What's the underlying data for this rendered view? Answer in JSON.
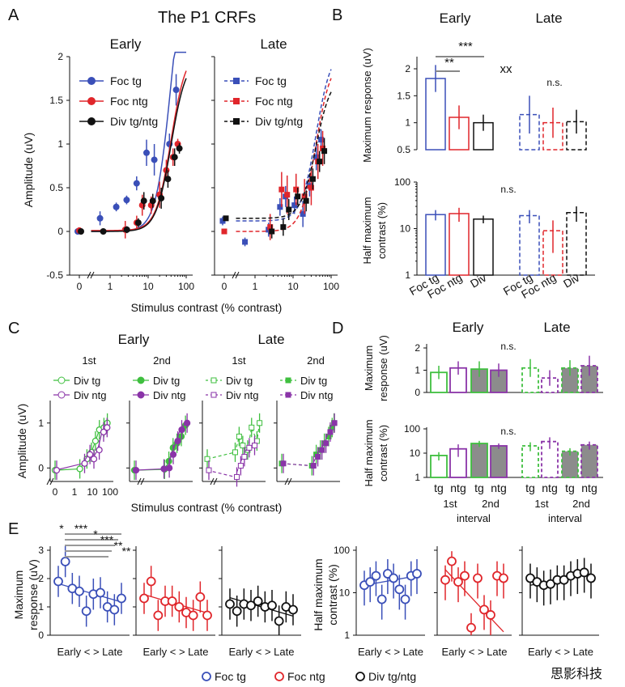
{
  "colors": {
    "blue": "#3a4fb8",
    "red": "#e0262b",
    "black": "#111111",
    "green": "#3fbf3f",
    "purple": "#8a34a8",
    "gray": "#8c8c8c"
  },
  "figure": {
    "title": "The P1 CRFs",
    "watermark": "思影科技"
  },
  "panel_labels": {
    "a": "A",
    "b": "B",
    "c": "C",
    "d": "D",
    "e": "E"
  },
  "chart_data": [
    {
      "id": "A-early",
      "type": "line",
      "title": "Early",
      "xlabel": "Stimulus contrast (% contrast)",
      "ylabel": "Amplitude (uV)",
      "x_ticks": [
        "0",
        "1",
        "10",
        "100"
      ],
      "y_ticks": [
        "-0.5",
        "0",
        "0.5",
        "1",
        "1.5",
        "2"
      ],
      "ylim": [
        -0.5,
        2
      ],
      "series": [
        {
          "name": "Foc tg",
          "color": "blue",
          "x": [
            0,
            0.6,
            1.6,
            3,
            5.5,
            10,
            16,
            40,
            60
          ],
          "y": [
            0,
            0.15,
            0.28,
            0.36,
            0.55,
            0.9,
            0.82,
            1.0,
            1.62
          ],
          "err": [
            0.03,
            0.08,
            0.05,
            0.05,
            0.08,
            0.15,
            0.18,
            0.12,
            0.18
          ]
        },
        {
          "name": "Foc ntg",
          "color": "red",
          "x": [
            0,
            2.5,
            5,
            7,
            12,
            20,
            30,
            45,
            60
          ],
          "y": [
            0.01,
            0.02,
            0.1,
            0.3,
            0.3,
            0.42,
            0.7,
            0.85,
            1.0
          ],
          "err": [
            0.02,
            0.1,
            0.08,
            0.12,
            0.1,
            0.15,
            0.12,
            0.1,
            0.06
          ]
        },
        {
          "name": "Div tg/ntg",
          "color": "black",
          "x": [
            0,
            0.6,
            2.5,
            5,
            7,
            12,
            20,
            30,
            45,
            60
          ],
          "y": [
            0,
            0.0,
            0.02,
            0.1,
            0.35,
            0.35,
            0.38,
            0.6,
            0.85,
            0.95
          ],
          "err": [
            0.02,
            0.02,
            0.04,
            0.05,
            0.1,
            0.08,
            0.12,
            0.1,
            0.1,
            0.06
          ]
        }
      ]
    },
    {
      "id": "A-late",
      "type": "line",
      "title": "Late",
      "x_ticks": [
        "0",
        "1",
        "10",
        "100"
      ],
      "ylim": [
        -0.5,
        2
      ],
      "series": [
        {
          "name": "Foc tg",
          "color": "blue",
          "x": [
            0,
            0.6,
            2.5,
            5,
            7,
            12,
            20,
            30,
            45,
            60
          ],
          "y": [
            0.12,
            -0.12,
            0.02,
            0.28,
            0.4,
            0.3,
            0.2,
            0.52,
            0.85,
            1.05
          ],
          "err": [
            0.05,
            0.05,
            0.08,
            0.1,
            0.12,
            0.1,
            0.15,
            0.12,
            0.15,
            0.12
          ]
        },
        {
          "name": "Foc ntg",
          "color": "red",
          "x": [
            0,
            2.5,
            5,
            7,
            12,
            20,
            30,
            45,
            60
          ],
          "y": [
            0.0,
            0.05,
            0.48,
            0.42,
            0.48,
            0.4,
            0.5,
            0.8,
            0.95
          ],
          "err": [
            0.02,
            0.15,
            0.2,
            0.22,
            0.18,
            0.2,
            0.2,
            0.2,
            0.2
          ]
        },
        {
          "name": "Div tg/ntg",
          "color": "black",
          "x": [
            0,
            2.5,
            5,
            7,
            12,
            20,
            30,
            45,
            60
          ],
          "y": [
            0.15,
            0.0,
            0.05,
            0.25,
            0.4,
            0.35,
            0.6,
            0.8,
            0.92
          ],
          "err": [
            0.03,
            0.08,
            0.1,
            0.12,
            0.1,
            0.12,
            0.12,
            0.12,
            0.15
          ]
        }
      ]
    },
    {
      "id": "B-maxresp",
      "type": "bar",
      "ylabel": "Maximum response (uV)",
      "y_ticks": [
        "0.5",
        "1",
        "1.5",
        "2"
      ],
      "ylim": [
        0.5,
        2.2
      ],
      "groups": [
        "Early",
        "Late"
      ],
      "bars": [
        {
          "name": "Foc tg",
          "color": "blue",
          "group": "Early",
          "value": 1.82,
          "err": 0.25
        },
        {
          "name": "Foc ntg",
          "color": "red",
          "group": "Early",
          "value": 1.1,
          "err": 0.22
        },
        {
          "name": "Div",
          "color": "black",
          "group": "Early",
          "value": 1.0,
          "err": 0.15
        },
        {
          "name": "Foc tg",
          "color": "blue",
          "group": "Late",
          "value": 1.15,
          "err": 0.35
        },
        {
          "name": "Foc ntg",
          "color": "red",
          "group": "Late",
          "value": 1.0,
          "err": 0.28
        },
        {
          "name": "Div",
          "color": "black",
          "group": "Late",
          "value": 1.02,
          "err": 0.22
        }
      ],
      "annotations": {
        "sig1": "***",
        "sig2": "**",
        "sig3": "xx",
        "ns": "n.s."
      }
    },
    {
      "id": "B-halfmax",
      "type": "bar",
      "ylabel": "Half maximum contrast (%)",
      "scale": "log",
      "y_ticks": [
        "1",
        "10",
        "100"
      ],
      "ylim": [
        1,
        100
      ],
      "bars": [
        {
          "name": "Foc tg",
          "color": "blue",
          "group": "Early",
          "value": 20,
          "err": 5
        },
        {
          "name": "Foc ntg",
          "color": "red",
          "group": "Early",
          "value": 21,
          "err": 7
        },
        {
          "name": "Div",
          "color": "black",
          "group": "Early",
          "value": 16,
          "err": 3
        },
        {
          "name": "Foc tg",
          "color": "blue",
          "group": "Late",
          "value": 19,
          "err": 6
        },
        {
          "name": "Foc ntg",
          "color": "red",
          "group": "Late",
          "value": 9,
          "err": 6
        },
        {
          "name": "Div",
          "color": "black",
          "group": "Late",
          "value": 22,
          "err": 8
        }
      ],
      "tick_labels": [
        "Foc tg",
        "Foc ntg",
        "Div",
        "Foc tg",
        "Foc ntg",
        "Div"
      ],
      "annotations": {
        "ns": "n.s."
      }
    },
    {
      "id": "C",
      "type": "line",
      "title_early": "Early",
      "title_late": "Late",
      "xlabel": "Stimulus contrast (% contrast)",
      "ylabel": "Amplitude (uV)",
      "subtitles": [
        "1st",
        "2nd",
        "1st",
        "2nd"
      ],
      "x_ticks": [
        "0",
        "1",
        "10",
        "100"
      ],
      "y_ticks": [
        "0",
        "1"
      ],
      "ylim": [
        -0.3,
        1.5
      ],
      "panels": [
        {
          "legend": [
            "Div tg",
            "Div ntg"
          ],
          "tg": [
            [
              0,
              -0.05
            ],
            [
              2,
              -0.02
            ],
            [
              5,
              0.2
            ],
            [
              9,
              0.35
            ],
            [
              15,
              0.6
            ],
            [
              25,
              0.85
            ],
            [
              45,
              0.9
            ],
            [
              70,
              1.0
            ]
          ],
          "ntg": [
            [
              0,
              -0.05
            ],
            [
              3,
              0.1
            ],
            [
              6,
              0.3
            ],
            [
              10,
              0.2
            ],
            [
              20,
              0.4
            ],
            [
              35,
              0.8
            ],
            [
              55,
              0.9
            ]
          ]
        },
        {
          "legend": [
            "Div tg",
            "Div ntg"
          ],
          "tg": [
            [
              0,
              -0.05
            ],
            [
              4,
              -0.03
            ],
            [
              7,
              0.15
            ],
            [
              12,
              0.45
            ],
            [
              20,
              0.55
            ],
            [
              35,
              0.7
            ],
            [
              60,
              0.95
            ]
          ],
          "ntg": [
            [
              0,
              -0.05
            ],
            [
              3,
              -0.02
            ],
            [
              6,
              0.0
            ],
            [
              10,
              0.3
            ],
            [
              18,
              0.6
            ],
            [
              30,
              0.85
            ],
            [
              60,
              1.0
            ]
          ]
        },
        {
          "legend": [
            "Div tg",
            "Div ntg"
          ],
          "tg": [
            [
              0,
              0.2
            ],
            [
              3,
              0.35
            ],
            [
              5,
              0.7
            ],
            [
              8,
              0.5
            ],
            [
              15,
              0.4
            ],
            [
              25,
              0.9
            ],
            [
              50,
              0.6
            ],
            [
              70,
              1.0
            ]
          ],
          "ntg": [
            [
              0,
              -0.05
            ],
            [
              3,
              -0.2
            ],
            [
              5,
              0.05
            ],
            [
              8,
              0.25
            ],
            [
              15,
              0.45
            ],
            [
              30,
              0.5
            ]
          ]
        },
        {
          "legend": [
            "Div tg",
            "Div ntg"
          ],
          "tg": [
            [
              0,
              0.1
            ],
            [
              4,
              0.05
            ],
            [
              7,
              0.3
            ],
            [
              12,
              0.4
            ],
            [
              20,
              0.55
            ],
            [
              35,
              0.7
            ],
            [
              55,
              0.9
            ],
            [
              70,
              1.0
            ]
          ],
          "ntg": [
            [
              0,
              0.1
            ],
            [
              4,
              0.05
            ],
            [
              7,
              0.25
            ],
            [
              12,
              0.4
            ],
            [
              20,
              0.55
            ],
            [
              35,
              0.8
            ],
            [
              60,
              1.0
            ]
          ]
        }
      ]
    },
    {
      "id": "D",
      "type": "bar",
      "title_early": "Early",
      "title_late": "Late",
      "ylabel_top": "Maximum response (uV)",
      "ylabel_bottom": "Half maximum contrast (%)",
      "top_y_ticks": [
        "0",
        "1",
        "2"
      ],
      "bottom_y_ticks": [
        "1",
        "10",
        "100"
      ],
      "top_values": [
        0.9,
        1.1,
        1.05,
        1.0,
        1.1,
        0.65,
        1.1,
        1.2
      ],
      "top_err": [
        0.3,
        0.3,
        0.35,
        0.3,
        0.4,
        0.35,
        0.35,
        0.45
      ],
      "bottom_values": [
        8,
        15,
        25,
        20,
        20,
        30,
        12,
        22
      ],
      "bottom_err": [
        3,
        8,
        7,
        5,
        8,
        15,
        4,
        8
      ],
      "bar_labels": [
        "tg",
        "ntg",
        "tg",
        "ntg",
        "tg",
        "ntg",
        "tg",
        "ntg"
      ],
      "interval_labels": [
        "1st",
        "2nd",
        "1st",
        "2nd"
      ],
      "interval_word": "interval",
      "ns": "n.s."
    },
    {
      "id": "E-maxresp",
      "type": "scatter",
      "ylabel": "Maximum response (uV)",
      "y_ticks": [
        "0",
        "1",
        "2",
        "3"
      ],
      "xlabel": "Early < > Late",
      "panels": [
        {
          "color": "blue",
          "y": [
            1.9,
            2.6,
            1.65,
            1.55,
            0.85,
            1.45,
            1.5,
            1.0,
            0.9,
            1.3
          ]
        },
        {
          "color": "red",
          "y": [
            1.3,
            1.9,
            0.7,
            1.2,
            1.2,
            1.0,
            0.8,
            0.7,
            1.35,
            0.7
          ]
        },
        {
          "color": "black",
          "y": [
            1.1,
            0.85,
            1.1,
            1.05,
            1.2,
            1.0,
            1.05,
            0.5,
            1.0,
            0.9
          ]
        }
      ],
      "sig_labels": [
        "*",
        "***",
        "*",
        "***",
        "**",
        "**"
      ]
    },
    {
      "id": "E-halfmax",
      "type": "scatter",
      "ylabel": "Half maximum contrast (%)",
      "scale": "log",
      "y_ticks": [
        "1",
        "10",
        "100"
      ],
      "xlabel": "Early < > Late",
      "panels": [
        {
          "color": "blue",
          "y": [
            15,
            18,
            25,
            7,
            28,
            22,
            12,
            7,
            25,
            28
          ]
        },
        {
          "color": "red",
          "y": [
            20,
            55,
            18,
            25,
            1.5,
            22,
            4,
            3,
            25,
            22
          ]
        },
        {
          "color": "black",
          "y": [
            22,
            18,
            15,
            16,
            20,
            20,
            25,
            28,
            30,
            22
          ]
        }
      ]
    }
  ],
  "e_legend": [
    "Foc tg",
    "Foc ntg",
    "Div tg/ntg"
  ]
}
